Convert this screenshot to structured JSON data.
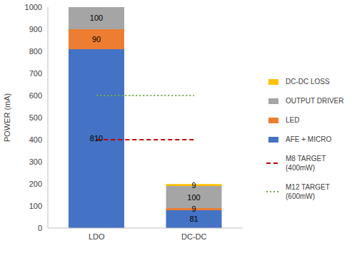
{
  "chart_data": {
    "type": "bar",
    "stacked": true,
    "data_labels": true,
    "grid": false,
    "legend": "right",
    "y_label": "POWER (mA)",
    "categories": [
      "LDO",
      "DC-DC"
    ],
    "ylim": [
      0,
      1000
    ],
    "yticks": [
      0,
      100,
      200,
      300,
      400,
      500,
      600,
      700,
      800,
      900,
      1000
    ],
    "series": [
      {
        "name": "AFE + MICRO",
        "type": "bar",
        "color": "#4472c4",
        "values": [
          810,
          81
        ]
      },
      {
        "name": "LED",
        "type": "bar",
        "color": "#ed7d31",
        "values": [
          90,
          9
        ]
      },
      {
        "name": "OUTPUT DRIVER",
        "type": "bar",
        "color": "#a5a5a5",
        "values": [
          100,
          100
        ]
      },
      {
        "name": "DC-DC LOSS",
        "type": "bar",
        "color": "#ffc000",
        "values": [
          null,
          9
        ]
      },
      {
        "name": "M8 TARGET (400mW)",
        "type": "line",
        "color": "#c00000",
        "line_style": "dashed",
        "values": [
          400,
          400
        ]
      },
      {
        "name": "M12 TARGET (600mW)",
        "type": "line",
        "color": "#70ad47",
        "line_style": "dotted",
        "values": [
          600,
          600
        ]
      }
    ]
  }
}
